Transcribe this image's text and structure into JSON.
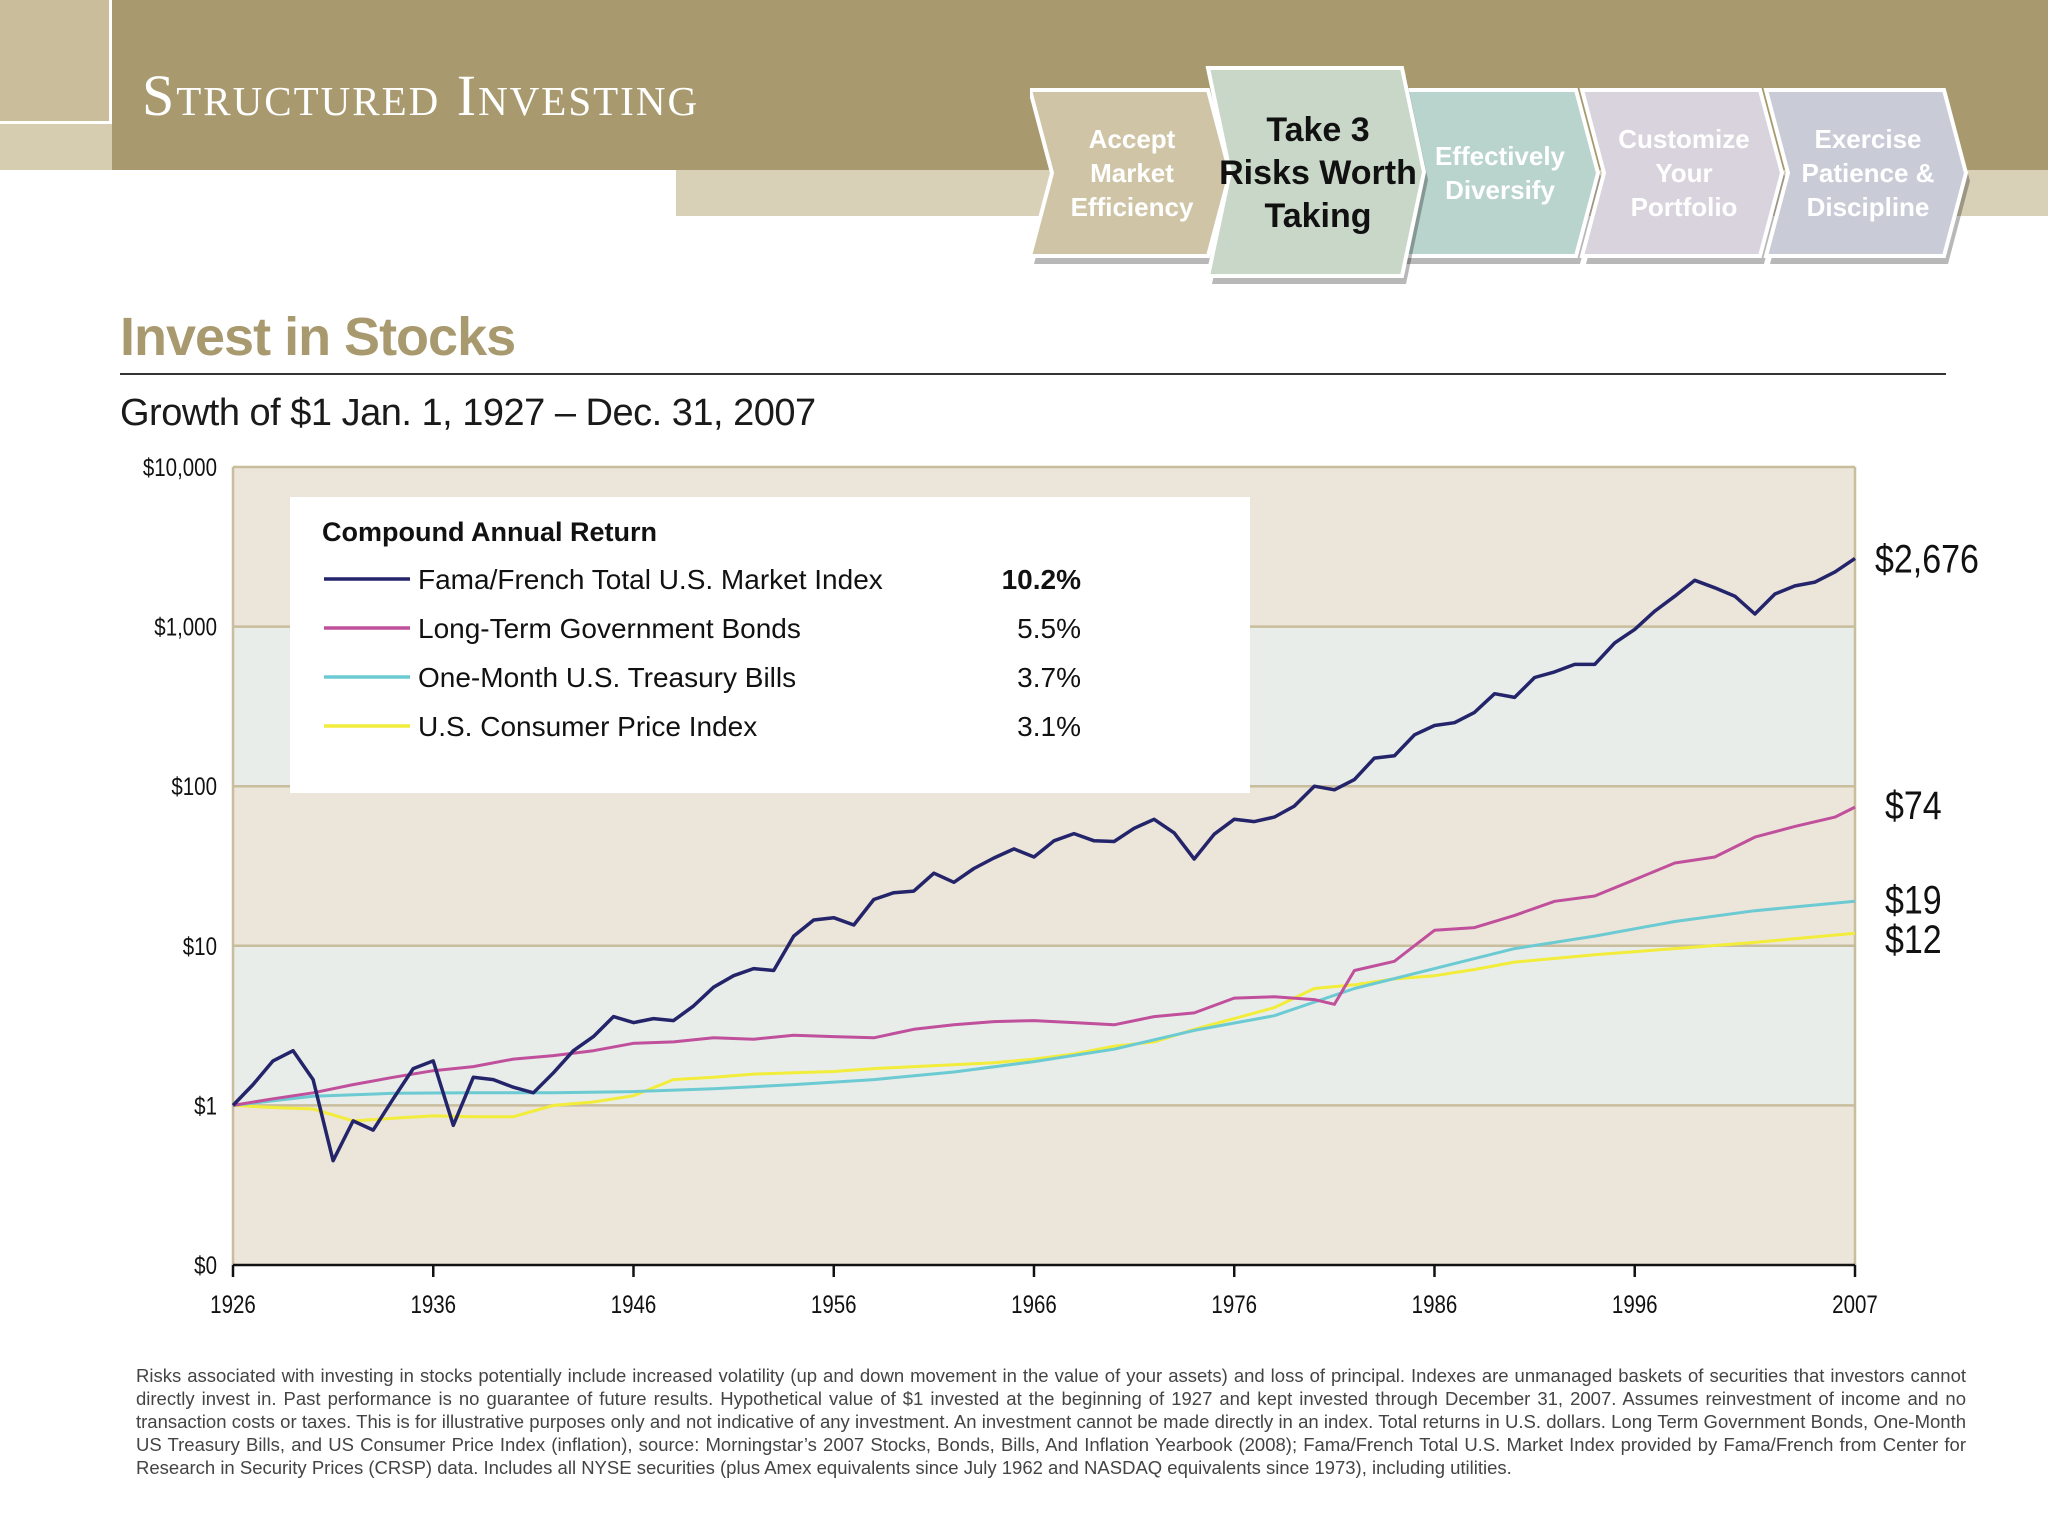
{
  "header": {
    "brand": "Structured Investing",
    "steps": [
      {
        "lines": [
          "Accept",
          "Market",
          "Efficiency"
        ],
        "active": false,
        "color": "#cfc5a6"
      },
      {
        "lines": [
          "Take 3",
          "Risks Worth",
          "Taking"
        ],
        "active": true,
        "color": "#c9d7c8"
      },
      {
        "lines": [
          "Effectively",
          "Diversify"
        ],
        "active": false,
        "color": "#b9d3cd"
      },
      {
        "lines": [
          "Customize",
          "Your",
          "Portfolio"
        ],
        "active": false,
        "color": "#d8d3dc"
      },
      {
        "lines": [
          "Exercise",
          "Patience &",
          "Discipline"
        ],
        "active": false,
        "color": "#c9ccd7"
      }
    ]
  },
  "section_title": "Invest in Stocks",
  "subtitle": "Growth of $1 Jan. 1, 1927 – Dec. 31, 2007",
  "chart_data": {
    "type": "line",
    "y_scale": "log",
    "ylim": [
      0.1,
      10000
    ],
    "xlim": [
      1926,
      2007
    ],
    "x_ticks": [
      1926,
      1936,
      1946,
      1956,
      1966,
      1976,
      1986,
      1996,
      2007
    ],
    "y_tick_labels": [
      "$0",
      "$1",
      "$10",
      "$100",
      "$1,000",
      "$10,000"
    ],
    "y_tick_values": [
      0.1,
      1,
      10,
      100,
      1000,
      10000
    ],
    "legend_title": "Compound Annual Return",
    "legend_placement": "top-left",
    "band_colors": [
      "#ece5da",
      "#e8ede9"
    ],
    "series": [
      {
        "name": "Fama/French Total U.S. Market Index",
        "return": "10.2%",
        "end_label": "$2,676",
        "color": "#24246b",
        "x": [
          1926,
          1927,
          1928,
          1929,
          1930,
          1931,
          1932,
          1933,
          1934,
          1935,
          1936,
          1937,
          1938,
          1939,
          1940,
          1941,
          1942,
          1943,
          1944,
          1945,
          1946,
          1947,
          1948,
          1949,
          1950,
          1951,
          1952,
          1953,
          1954,
          1955,
          1956,
          1957,
          1958,
          1959,
          1960,
          1961,
          1962,
          1963,
          1964,
          1965,
          1966,
          1967,
          1968,
          1969,
          1970,
          1971,
          1972,
          1973,
          1974,
          1975,
          1976,
          1977,
          1978,
          1979,
          1980,
          1981,
          1982,
          1983,
          1984,
          1985,
          1986,
          1987,
          1988,
          1989,
          1990,
          1991,
          1992,
          1993,
          1994,
          1995,
          1996,
          1997,
          1998,
          1999,
          2000,
          2001,
          2002,
          2003,
          2004,
          2005,
          2006,
          2007
        ],
        "y": [
          1.0,
          1.35,
          1.9,
          2.2,
          1.45,
          0.45,
          0.8,
          0.7,
          1.1,
          1.7,
          1.9,
          0.75,
          1.5,
          1.45,
          1.3,
          1.2,
          1.6,
          2.2,
          2.7,
          3.6,
          3.3,
          3.5,
          3.4,
          4.2,
          5.5,
          6.5,
          7.2,
          7.0,
          11.5,
          14.5,
          15.0,
          13.5,
          19.5,
          21.5,
          22.0,
          28.5,
          25.0,
          30.5,
          35.5,
          40.5,
          36.0,
          45.5,
          50.5,
          45.5,
          45.0,
          54.5,
          62.0,
          51.0,
          35.0,
          50.0,
          62.0,
          60.0,
          64.0,
          75.0,
          100.0,
          95.0,
          110.0,
          150.0,
          155.0,
          210.0,
          240.0,
          250.0,
          290.0,
          380.0,
          360.0,
          480.0,
          520.0,
          580.0,
          580.0,
          790.0,
          960.0,
          1250.0,
          1550.0,
          1950.0,
          1750.0,
          1550.0,
          1200.0,
          1600.0,
          1800.0,
          1900.0,
          2200.0,
          2676.0
        ]
      },
      {
        "name": "Long-Term Government Bonds",
        "return": "5.5%",
        "end_label": "$74",
        "color": "#c0509c",
        "x": [
          1926,
          1928,
          1930,
          1932,
          1934,
          1936,
          1938,
          1940,
          1942,
          1944,
          1946,
          1948,
          1950,
          1952,
          1954,
          1956,
          1958,
          1960,
          1962,
          1964,
          1966,
          1968,
          1970,
          1972,
          1974,
          1976,
          1978,
          1980,
          1981,
          1982,
          1984,
          1986,
          1988,
          1990,
          1992,
          1994,
          1996,
          1998,
          2000,
          2002,
          2004,
          2006,
          2007
        ],
        "y": [
          1.0,
          1.1,
          1.2,
          1.35,
          1.5,
          1.65,
          1.75,
          1.95,
          2.05,
          2.2,
          2.45,
          2.5,
          2.65,
          2.6,
          2.75,
          2.7,
          2.65,
          3.0,
          3.2,
          3.35,
          3.4,
          3.3,
          3.2,
          3.6,
          3.8,
          4.7,
          4.8,
          4.6,
          4.3,
          7.0,
          8.0,
          12.5,
          13.0,
          15.5,
          19.0,
          20.5,
          26.0,
          33.0,
          36.0,
          48.0,
          56.0,
          64.0,
          74.0
        ]
      },
      {
        "name": "One-Month U.S. Treasury Bills",
        "return": "3.7%",
        "end_label": "$19",
        "color": "#6ccad3",
        "x": [
          1926,
          1930,
          1934,
          1938,
          1942,
          1946,
          1950,
          1954,
          1958,
          1962,
          1966,
          1970,
          1974,
          1978,
          1982,
          1986,
          1990,
          1994,
          1998,
          2002,
          2007
        ],
        "y": [
          1.0,
          1.14,
          1.19,
          1.2,
          1.2,
          1.22,
          1.27,
          1.35,
          1.45,
          1.62,
          1.88,
          2.25,
          2.95,
          3.65,
          5.4,
          7.2,
          9.6,
          11.5,
          14.2,
          16.6,
          19.0
        ]
      },
      {
        "name": "U.S. Consumer Price Index",
        "return": "3.1%",
        "end_label": "$12",
        "color": "#f2ec3a",
        "x": [
          1926,
          1928,
          1930,
          1932,
          1934,
          1936,
          1938,
          1940,
          1942,
          1944,
          1946,
          1948,
          1950,
          1952,
          1954,
          1956,
          1958,
          1960,
          1962,
          1964,
          1966,
          1968,
          1970,
          1972,
          1974,
          1976,
          1978,
          1980,
          1982,
          1984,
          1986,
          1988,
          1990,
          1994,
          1998,
          2002,
          2007
        ],
        "y": [
          1.0,
          0.97,
          0.95,
          0.8,
          0.83,
          0.86,
          0.85,
          0.85,
          1.0,
          1.05,
          1.15,
          1.45,
          1.5,
          1.57,
          1.6,
          1.63,
          1.7,
          1.75,
          1.8,
          1.85,
          1.95,
          2.1,
          2.35,
          2.5,
          3.0,
          3.5,
          4.1,
          5.4,
          5.7,
          6.2,
          6.5,
          7.1,
          7.9,
          8.8,
          9.6,
          10.5,
          12.0
        ]
      }
    ]
  },
  "disclaimer": "Risks associated with investing in stocks potentially include increased volatility (up and down movement in the value of your assets) and loss of principal. Indexes are unmanaged baskets of securities that investors cannot directly invest in. Past performance is no guarantee of future results. Hypothetical value of $1 invested at the beginning of 1927 and kept invested through December 31, 2007. Assumes reinvestment of income and no transaction costs or taxes. This is for illustrative purposes only and not indicative of any investment. An investment cannot be made directly in an index. Total returns in U.S. dollars. Long Term Government Bonds, One-Month US Treasury Bills, and US Consumer Price Index (inflation), source: Morningstar’s 2007 Stocks, Bonds, Bills, And Inflation Yearbook (2008); Fama/French Total U.S. Market Index provided by Fama/French from Center for Research in Security Prices (CRSP) data. Includes all NYSE securities (plus Amex equivalents since July 1962 and NASDAQ equivalents since 1973), including utilities."
}
